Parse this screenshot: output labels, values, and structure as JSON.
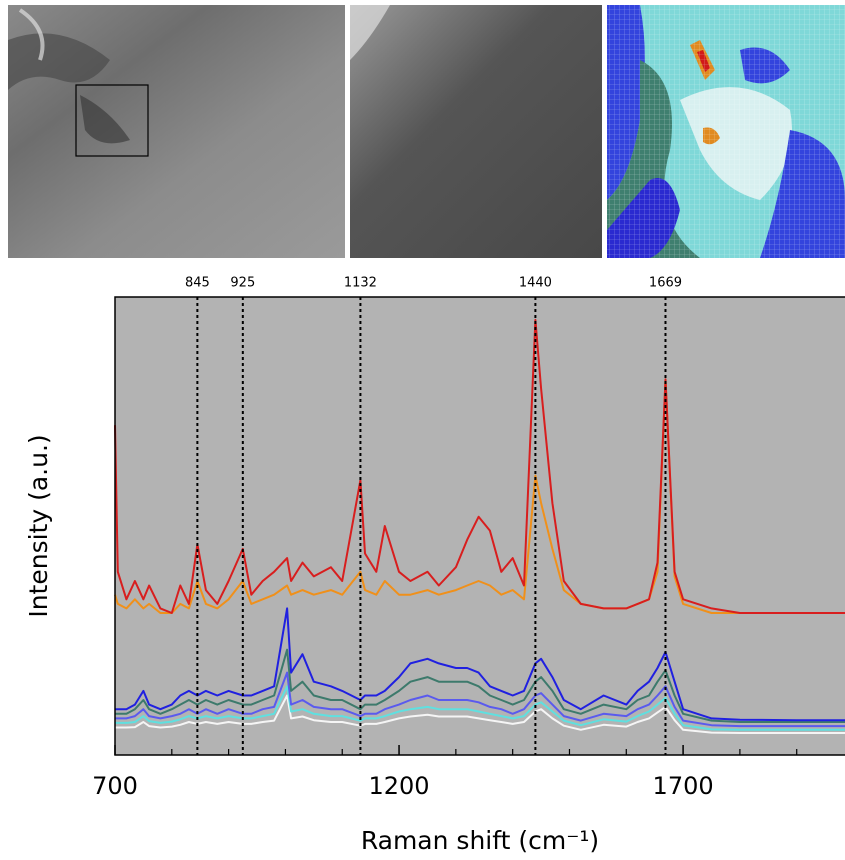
{
  "chart_data": {
    "type": "line",
    "xlabel": "Raman shift (cm⁻¹)",
    "ylabel": "Intensity (a.u.)",
    "xlim": [
      700,
      1985
    ],
    "ylim": [
      0,
      100
    ],
    "xticks": [
      700,
      1200,
      1700
    ],
    "xminorticks": [
      800,
      900,
      1000,
      1100,
      1300,
      1400,
      1500,
      1600,
      1800,
      1900
    ],
    "vlines": [
      845,
      925,
      1132,
      1440,
      1669
    ],
    "background": "#b3b3b3",
    "x": [
      700,
      705,
      720,
      735,
      750,
      760,
      780,
      800,
      815,
      830,
      845,
      860,
      880,
      900,
      925,
      940,
      960,
      980,
      1003,
      1010,
      1030,
      1050,
      1080,
      1100,
      1132,
      1140,
      1160,
      1175,
      1200,
      1220,
      1250,
      1270,
      1300,
      1320,
      1340,
      1360,
      1380,
      1400,
      1420,
      1440,
      1450,
      1470,
      1490,
      1520,
      1560,
      1600,
      1620,
      1640,
      1655,
      1669,
      1685,
      1700,
      1750,
      1800,
      1900,
      1985
    ],
    "series": [
      {
        "color": "#f5f5f5",
        "values": [
          6,
          6,
          6,
          6.1,
          7.2,
          6.3,
          6,
          6.2,
          6.6,
          7.2,
          6.8,
          7.2,
          6.8,
          7.2,
          6.8,
          6.8,
          7.2,
          7.5,
          13,
          8,
          8.4,
          7.6,
          7.2,
          7.2,
          6.4,
          6.8,
          6.8,
          7.2,
          8,
          8.4,
          8.8,
          8.4,
          8.4,
          8.4,
          8,
          7.6,
          7.2,
          6.8,
          7.2,
          9.5,
          10,
          8,
          6.4,
          5.5,
          6.6,
          6.2,
          7.2,
          8,
          9.3,
          10.5,
          7.6,
          5.5,
          4.9,
          4.8,
          4.8,
          4.8
        ]
      },
      {
        "color": "#5fe0e0",
        "values": [
          7,
          7,
          7,
          7.2,
          8.5,
          7.4,
          7,
          7.3,
          7.8,
          8.5,
          8,
          8.5,
          8,
          8.5,
          8,
          8,
          8.5,
          9,
          15,
          9.5,
          10,
          9,
          8.5,
          8.5,
          7.5,
          8,
          8,
          8.5,
          9.5,
          10,
          10.5,
          10,
          10,
          10,
          9.5,
          9,
          8.5,
          8,
          8.5,
          11,
          11.5,
          9.5,
          7.5,
          6.5,
          7.8,
          7.3,
          8.5,
          9.5,
          11,
          12.5,
          9,
          6.5,
          5.6,
          5.5,
          5.5,
          5.5
        ]
      },
      {
        "color": "#5a5aee",
        "values": [
          8,
          8,
          8,
          8.5,
          10,
          8.5,
          8,
          8.5,
          9,
          10,
          9,
          10,
          9,
          10,
          9,
          9,
          10,
          10.5,
          18,
          11,
          12,
          10.5,
          10,
          10,
          8.5,
          9,
          9,
          10,
          11,
          12,
          13,
          12,
          12,
          12,
          11.5,
          10.5,
          10,
          9,
          10,
          13,
          13.5,
          11,
          8.5,
          7.5,
          9,
          8.5,
          10,
          11,
          13,
          15,
          10.5,
          7.5,
          6.5,
          6.3,
          6.3,
          6.3
        ]
      },
      {
        "color": "#3d7a6c",
        "values": [
          9,
          9,
          9,
          10,
          12,
          10,
          9,
          10,
          11,
          12,
          11,
          12,
          11,
          12,
          11,
          11,
          12,
          13,
          23,
          14,
          16,
          13,
          12,
          12,
          10,
          11,
          11,
          12,
          14,
          16,
          17,
          16,
          16,
          16,
          15,
          13,
          12,
          11,
          12,
          16,
          17,
          14,
          10,
          9,
          11,
          10,
          12,
          13,
          16,
          18.5,
          13,
          9,
          7.5,
          7.2,
          7.2,
          7.2
        ]
      },
      {
        "color": "#2020e0",
        "values": [
          10,
          10,
          10,
          11,
          14,
          11,
          10,
          11,
          13,
          14,
          13,
          14,
          13,
          14,
          13,
          13,
          14,
          15,
          32,
          18,
          22,
          16,
          15,
          14,
          12,
          13,
          13,
          14,
          17,
          20,
          21,
          20,
          19,
          19,
          18,
          15,
          14,
          13,
          14,
          20,
          21,
          17,
          12,
          10,
          13,
          11,
          14,
          16,
          19,
          22.5,
          16,
          10,
          8,
          7.7,
          7.6,
          7.6
        ]
      },
      {
        "color": "#f0901a",
        "values": [
          35,
          33,
          32,
          34,
          32,
          33,
          31,
          31,
          33,
          32,
          38,
          33,
          32,
          34,
          38,
          33,
          34,
          35,
          37,
          35,
          36,
          35,
          36,
          35,
          40,
          36,
          35,
          38,
          35,
          35,
          36,
          35,
          36,
          37,
          38,
          37,
          35,
          36,
          34,
          61,
          55,
          45,
          36,
          33,
          32,
          32,
          33,
          34,
          40,
          82,
          39,
          33,
          31,
          31,
          31,
          31
        ]
      },
      {
        "color": "#d81e1e",
        "values": [
          72,
          40,
          34,
          38,
          34,
          37,
          32,
          31,
          37,
          33,
          46,
          36,
          33,
          38,
          45,
          35,
          38,
          40,
          43,
          38,
          42,
          39,
          41,
          38,
          60,
          44,
          40,
          50,
          40,
          38,
          40,
          37,
          41,
          47,
          52,
          49,
          40,
          43,
          37,
          95,
          80,
          55,
          38,
          33,
          32,
          32,
          33,
          34,
          42,
          82,
          40,
          34,
          32,
          31,
          31,
          31
        ]
      }
    ]
  }
}
